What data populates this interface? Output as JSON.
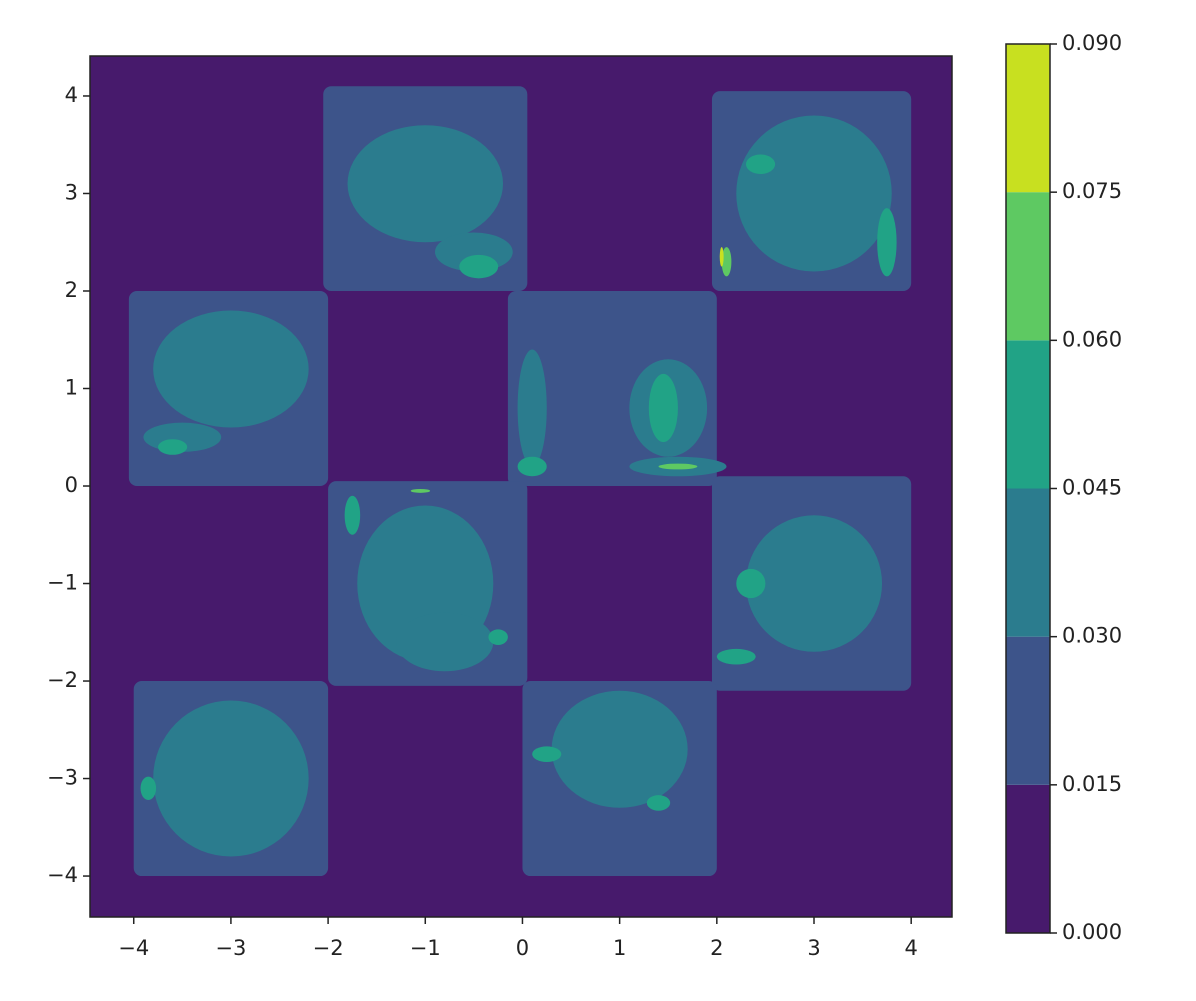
{
  "chart_data": {
    "type": "contourf",
    "xlim": [
      -4.45,
      4.42
    ],
    "ylim": [
      -4.42,
      4.41
    ],
    "xticks": [
      {
        "value": -4,
        "label": "−4"
      },
      {
        "value": -3,
        "label": "−3"
      },
      {
        "value": -2,
        "label": "−2"
      },
      {
        "value": -1,
        "label": "−1"
      },
      0,
      1,
      2,
      3,
      4
    ],
    "yticks": [
      {
        "value": -4,
        "label": "−4"
      },
      {
        "value": -3,
        "label": "−3"
      },
      {
        "value": -2,
        "label": "−2"
      },
      {
        "value": -1,
        "label": "−1"
      },
      0,
      1,
      2,
      3,
      4
    ],
    "levels": [
      {
        "value": 0,
        "label": "0.000"
      },
      {
        "value": 0.015,
        "label": "0.015"
      },
      {
        "value": 0.03,
        "label": "0.030"
      },
      {
        "value": 0.045,
        "label": "0.045"
      },
      {
        "value": 0.06,
        "label": "0.060"
      },
      {
        "value": 0.075,
        "label": "0.075"
      },
      {
        "value": 0.09,
        "label": "0.090"
      }
    ],
    "colors": [
      "#471a6c",
      "#3d548a",
      "#2b7c8e",
      "#21a386",
      "#5ec962",
      "#c8e020"
    ],
    "regions": [
      {
        "level": 0.015,
        "x": [
          -2.05,
          0.05
        ],
        "y": [
          2,
          4.1
        ]
      },
      {
        "level": 0.015,
        "x": [
          1.95,
          4
        ],
        "y": [
          2,
          4.05
        ]
      },
      {
        "level": 0.015,
        "x": [
          -4.05,
          -2
        ],
        "y": [
          0,
          2
        ]
      },
      {
        "level": 0.015,
        "x": [
          -0.15,
          2
        ],
        "y": [
          0,
          2
        ]
      },
      {
        "level": 0.015,
        "x": [
          -2,
          0.05
        ],
        "y": [
          -2.05,
          0.05
        ]
      },
      {
        "level": 0.015,
        "x": [
          1.95,
          4
        ],
        "y": [
          -2.1,
          0.1
        ]
      },
      {
        "level": 0.015,
        "x": [
          -4,
          -2
        ],
        "y": [
          -4,
          -2
        ]
      },
      {
        "level": 0.015,
        "x": [
          0,
          2
        ],
        "y": [
          -4,
          -2
        ]
      }
    ],
    "blobs": [
      {
        "level": 0.03,
        "x": -1,
        "y": 3.1,
        "rx": 0.8,
        "ry": 0.6
      },
      {
        "level": 0.03,
        "x": -0.5,
        "y": 2.4,
        "rx": 0.4,
        "ry": 0.2
      },
      {
        "level": 0.03,
        "x": 3,
        "y": 3,
        "rx": 0.8,
        "ry": 0.8
      },
      {
        "level": 0.03,
        "x": -3,
        "y": 1.2,
        "rx": 0.8,
        "ry": 0.6
      },
      {
        "level": 0.03,
        "x": -3.5,
        "y": 0.5,
        "rx": 0.4,
        "ry": 0.15
      },
      {
        "level": 0.03,
        "x": 1.5,
        "y": 0.8,
        "rx": 0.4,
        "ry": 0.5
      },
      {
        "level": 0.03,
        "x": 0.1,
        "y": 0.8,
        "rx": 0.15,
        "ry": 0.6
      },
      {
        "level": 0.03,
        "x": -1,
        "y": -1,
        "rx": 0.7,
        "ry": 0.8
      },
      {
        "level": 0.03,
        "x": -0.8,
        "y": -1.6,
        "rx": 0.5,
        "ry": 0.3
      },
      {
        "level": 0.03,
        "x": 3,
        "y": -1,
        "rx": 0.7,
        "ry": 0.7
      },
      {
        "level": 0.03,
        "x": -3,
        "y": -3,
        "rx": 0.8,
        "ry": 0.8
      },
      {
        "level": 0.03,
        "x": 1,
        "y": -2.7,
        "rx": 0.7,
        "ry": 0.6
      },
      {
        "level": 0.03,
        "x": 1.6,
        "y": 0.2,
        "rx": 0.5,
        "ry": 0.1
      },
      {
        "level": 0.045,
        "x": 2.45,
        "y": 3.3,
        "rx": 0.15,
        "ry": 0.1
      },
      {
        "level": 0.045,
        "x": -0.45,
        "y": 2.25,
        "rx": 0.2,
        "ry": 0.12
      },
      {
        "level": 0.045,
        "x": 3.75,
        "y": 2.5,
        "rx": 0.1,
        "ry": 0.35
      },
      {
        "level": 0.045,
        "x": -3.6,
        "y": 0.4,
        "rx": 0.15,
        "ry": 0.08
      },
      {
        "level": 0.045,
        "x": 1.45,
        "y": 0.8,
        "rx": 0.15,
        "ry": 0.35
      },
      {
        "level": 0.045,
        "x": 2.35,
        "y": -1,
        "rx": 0.15,
        "ry": 0.15
      },
      {
        "level": 0.045,
        "x": -0.25,
        "y": -1.55,
        "rx": 0.1,
        "ry": 0.08
      },
      {
        "level": 0.045,
        "x": -3.85,
        "y": -3.1,
        "rx": 0.08,
        "ry": 0.12
      },
      {
        "level": 0.045,
        "x": 1.4,
        "y": -3.25,
        "rx": 0.12,
        "ry": 0.08
      },
      {
        "level": 0.045,
        "x": 0.25,
        "y": -2.75,
        "rx": 0.15,
        "ry": 0.08
      },
      {
        "level": 0.045,
        "x": 0.1,
        "y": 0.2,
        "rx": 0.15,
        "ry": 0.1
      },
      {
        "level": 0.045,
        "x": -1.75,
        "y": -0.3,
        "rx": 0.08,
        "ry": 0.2
      },
      {
        "level": 0.045,
        "x": 2.2,
        "y": -1.75,
        "rx": 0.2,
        "ry": 0.08
      },
      {
        "level": 0.06,
        "x": 2.1,
        "y": 2.3,
        "rx": 0.05,
        "ry": 0.15
      },
      {
        "level": 0.06,
        "x": 1.6,
        "y": 0.2,
        "rx": 0.2,
        "ry": 0.03
      },
      {
        "level": 0.06,
        "x": -1.05,
        "y": -0.05,
        "rx": 0.1,
        "ry": 0.02
      },
      {
        "level": 0.075,
        "x": 2.05,
        "y": 2.35,
        "rx": 0.02,
        "ry": 0.1
      }
    ]
  }
}
